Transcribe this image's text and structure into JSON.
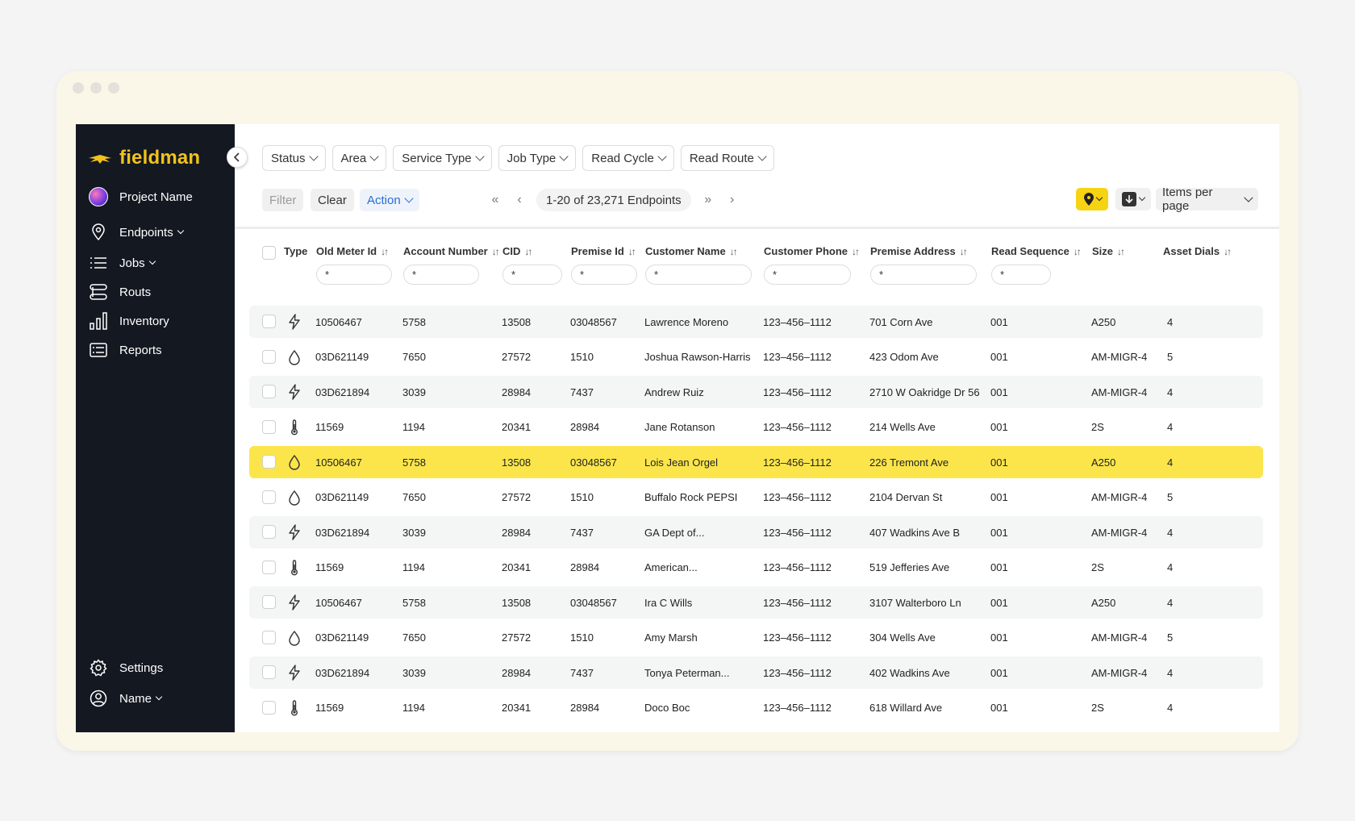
{
  "app": {
    "brand": "fieldman",
    "accent": "#f2c21b",
    "highlight": "#fbe54b"
  },
  "sidebar": {
    "project": "Project Name",
    "items": [
      {
        "label": "Endpoints",
        "icon": "pin-icon"
      },
      {
        "label": "Jobs",
        "icon": "list-icon"
      },
      {
        "label": "Routs",
        "icon": "route-icon"
      },
      {
        "label": "Inventory",
        "icon": "bar-chart-icon"
      },
      {
        "label": "Reports",
        "icon": "report-icon"
      }
    ],
    "settings": "Settings",
    "user": "Name"
  },
  "filters": [
    "Status",
    "Area",
    "Service Type",
    "Job Type",
    "Read Cycle",
    "Read Route"
  ],
  "toolbar": {
    "filter": "Filter",
    "clear": "Clear",
    "action": "Action",
    "page_count": "1-20 of 23,271 Endpoints",
    "items_per_page": "Items per page"
  },
  "columns": [
    "Type",
    "Old Meter Id",
    "Account Number",
    "CID",
    "Premise Id",
    "Customer Name",
    "Customer Phone",
    "Premise Address",
    "Read Sequence",
    "Size",
    "Asset Dials"
  ],
  "filter_placeholder": "*",
  "rows": [
    {
      "type": "electric",
      "meter": "10506467",
      "account": "5758",
      "cid": "13508",
      "premise": "03048567",
      "name": "Lawrence Moreno",
      "phone": "123–456–1112",
      "address": "701 Corn Ave",
      "seq": "001",
      "size": "A250",
      "dials": "4"
    },
    {
      "type": "water",
      "meter": "03D621149",
      "account": "7650",
      "cid": "27572",
      "premise": "1510",
      "name": "Joshua Rawson-Harris",
      "phone": "123–456–1112",
      "address": "423 Odom Ave",
      "seq": "001",
      "size": "AM-MIGR-4",
      "dials": "5"
    },
    {
      "type": "electric",
      "meter": "03D621894",
      "account": "3039",
      "cid": "28984",
      "premise": "7437",
      "name": "Andrew Ruiz",
      "phone": "123–456–1112",
      "address": "2710 W Oakridge Dr 56",
      "seq": "001",
      "size": "AM-MIGR-4",
      "dials": "4"
    },
    {
      "type": "gas",
      "meter": "11569",
      "account": "1194",
      "cid": "20341",
      "premise": "28984",
      "name": "Jane Rotanson",
      "phone": "123–456–1112",
      "address": "214 Wells Ave",
      "seq": "001",
      "size": "2S",
      "dials": "4"
    },
    {
      "type": "water",
      "meter": "10506467",
      "account": "5758",
      "cid": "13508",
      "premise": "03048567",
      "name": "Lois Jean Orgel",
      "phone": "123–456–1112",
      "address": "226 Tremont Ave",
      "seq": "001",
      "size": "A250",
      "dials": "4",
      "highlighted": true
    },
    {
      "type": "water",
      "meter": "03D621149",
      "account": "7650",
      "cid": "27572",
      "premise": "1510",
      "name": "Buffalo Rock PEPSI",
      "phone": "123–456–1112",
      "address": "2104 Dervan St",
      "seq": "001",
      "size": "AM-MIGR-4",
      "dials": "5"
    },
    {
      "type": "electric",
      "meter": "03D621894",
      "account": "3039",
      "cid": "28984",
      "premise": "7437",
      "name": "GA Dept of...",
      "phone": "123–456–1112",
      "address": "407 Wadkins Ave B",
      "seq": "001",
      "size": "AM-MIGR-4",
      "dials": "4"
    },
    {
      "type": "gas",
      "meter": "11569",
      "account": "1194",
      "cid": "20341",
      "premise": "28984",
      "name": "American...",
      "phone": "123–456–1112",
      "address": "519 Jefferies Ave",
      "seq": "001",
      "size": "2S",
      "dials": "4"
    },
    {
      "type": "electric",
      "meter": "10506467",
      "account": "5758",
      "cid": "13508",
      "premise": "03048567",
      "name": "Ira C Wills",
      "phone": "123–456–1112",
      "address": "3107 Walterboro Ln",
      "seq": "001",
      "size": "A250",
      "dials": "4"
    },
    {
      "type": "water",
      "meter": "03D621149",
      "account": "7650",
      "cid": "27572",
      "premise": "1510",
      "name": "Amy Marsh",
      "phone": "123–456–1112",
      "address": "304 Wells Ave",
      "seq": "001",
      "size": "AM-MIGR-4",
      "dials": "5"
    },
    {
      "type": "electric",
      "meter": "03D621894",
      "account": "3039",
      "cid": "28984",
      "premise": "7437",
      "name": "Tonya Peterman...",
      "phone": "123–456–1112",
      "address": "402 Wadkins Ave",
      "seq": "001",
      "size": "AM-MIGR-4",
      "dials": "4"
    },
    {
      "type": "gas",
      "meter": "11569",
      "account": "1194",
      "cid": "20341",
      "premise": "28984",
      "name": "Doco Boc",
      "phone": "123–456–1112",
      "address": "618 Willard Ave",
      "seq": "001",
      "size": "2S",
      "dials": "4"
    }
  ]
}
